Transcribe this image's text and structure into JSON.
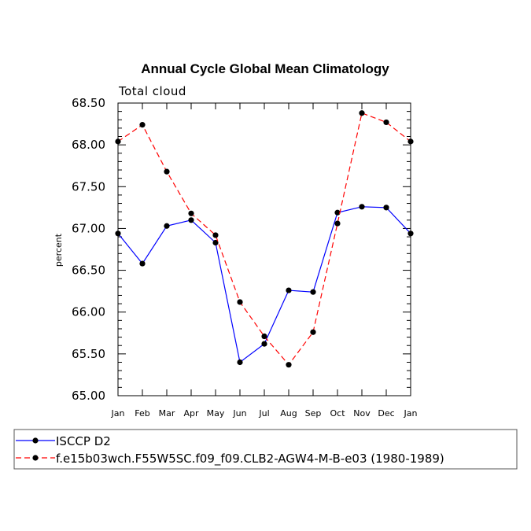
{
  "chart_data": {
    "type": "line",
    "title": "Annual Cycle Global Mean Climatology",
    "subtitle": "Total cloud",
    "xlabel": "",
    "ylabel": "percent",
    "categories": [
      "Jan",
      "Feb",
      "Mar",
      "Apr",
      "May",
      "Jun",
      "Jul",
      "Aug",
      "Sep",
      "Oct",
      "Nov",
      "Dec",
      "Jan"
    ],
    "ylim": [
      65.0,
      68.5
    ],
    "yticks": [
      "65.00",
      "65.50",
      "66.00",
      "66.50",
      "67.00",
      "67.50",
      "68.00",
      "68.50"
    ],
    "series": [
      {
        "name": "ISCCP D2",
        "color": "#0000ff",
        "dash": "solid",
        "values": [
          66.94,
          66.58,
          67.03,
          67.1,
          66.83,
          65.4,
          65.62,
          66.26,
          66.24,
          67.19,
          67.26,
          67.25,
          66.94
        ]
      },
      {
        "name": "f.e15b03wch.F55W5SC.f09_f09.CLB2-AGW4-M-B-e03 (1980-1989)",
        "color": "#ff0000",
        "dash": "dashed",
        "values": [
          68.04,
          68.24,
          67.68,
          67.18,
          66.92,
          66.12,
          65.71,
          65.37,
          65.76,
          67.06,
          68.38,
          68.27,
          68.04
        ]
      }
    ],
    "grid": false,
    "legend_position": "bottom"
  }
}
